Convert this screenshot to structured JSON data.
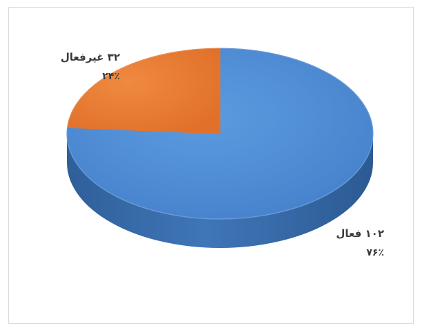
{
  "chart_data": {
    "type": "pie",
    "style": "3d",
    "slices": [
      {
        "label": "فعال",
        "value": 102,
        "percent": "۷۶٪",
        "value_text": "۱۰۲",
        "color": "#4f8fd8",
        "side_color": "#3a6fad"
      },
      {
        "label": "غیرفعال",
        "value": 32,
        "percent": "۲۴٪",
        "value_text": "۳۲",
        "color": "#ed7d31",
        "side_color": "#b85f22"
      }
    ]
  },
  "labels": {
    "active_name": "۱۰۲ فعال",
    "active_pct": "۷۶٪",
    "inactive_name": "۳۲ غیرفعال",
    "inactive_pct": "۲۴٪"
  }
}
